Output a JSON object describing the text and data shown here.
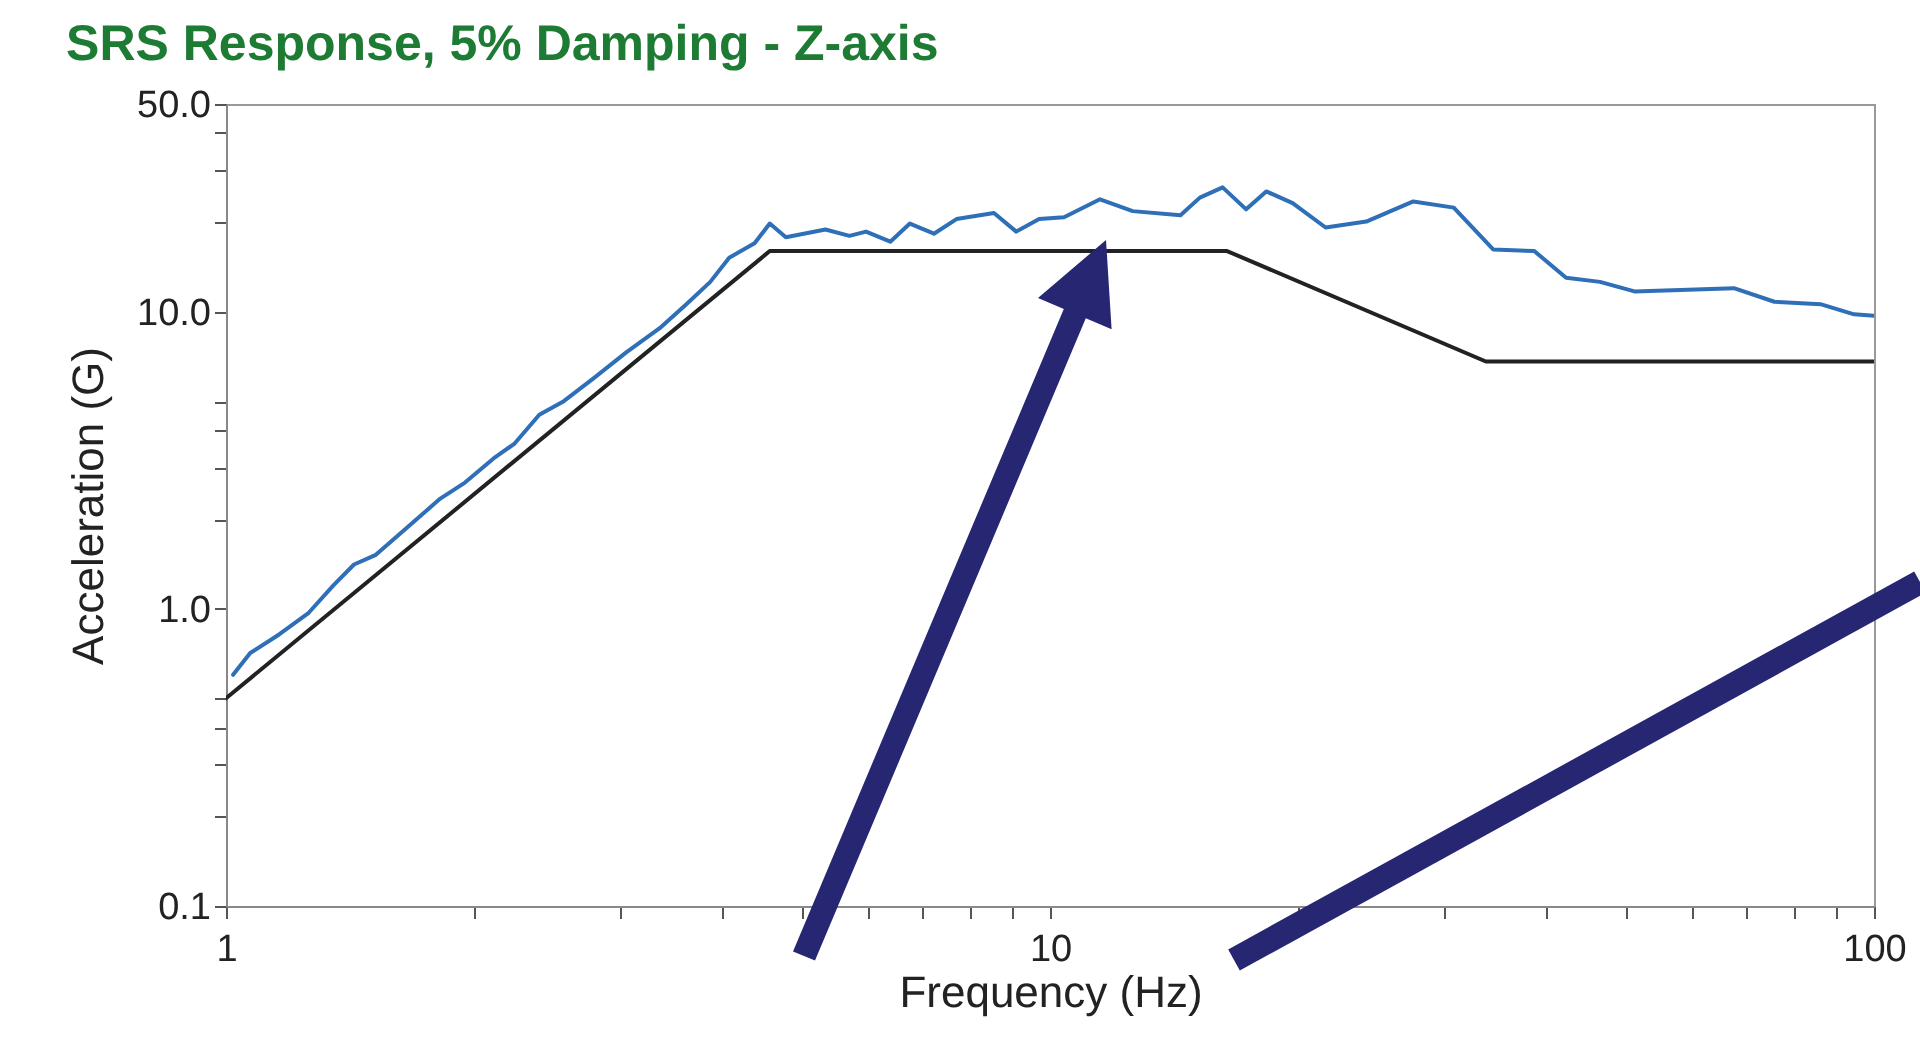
{
  "chart_data": {
    "type": "line",
    "title": "SRS Response, 5% Damping - Z-axis",
    "xlabel": "Frequency (Hz)",
    "ylabel": "Acceleration (G)",
    "log": "xy",
    "grid": false,
    "marker": "none",
    "line_style": "solid",
    "xlim": [
      1,
      100
    ],
    "xticks": [
      1,
      {
        "value": 2,
        "label": null
      },
      {
        "value": 3,
        "label": null
      },
      {
        "value": 4,
        "label": null
      },
      {
        "value": 5,
        "label": null
      },
      {
        "value": 6,
        "label": null
      },
      {
        "value": 7,
        "label": null
      },
      {
        "value": 8,
        "label": null
      },
      {
        "value": 9,
        "label": null
      },
      10,
      {
        "value": 20,
        "label": null
      },
      {
        "value": 30,
        "label": null
      },
      {
        "value": 40,
        "label": null
      },
      {
        "value": 50,
        "label": null
      },
      {
        "value": 60,
        "label": null
      },
      {
        "value": 70,
        "label": null
      },
      {
        "value": 80,
        "label": null
      },
      {
        "value": 90,
        "label": null
      },
      100
    ],
    "ylim": [
      0.1,
      50
    ],
    "yticks": [
      {
        "value": 0.1,
        "label": "0.1"
      },
      {
        "value": 0.2,
        "label": null
      },
      {
        "value": 0.3,
        "label": null
      },
      {
        "value": 0.4,
        "label": null
      },
      {
        "value": 0.5,
        "label": null
      },
      {
        "value": 1,
        "label": "1.0"
      },
      {
        "value": 2,
        "label": null
      },
      {
        "value": 3,
        "label": null
      },
      {
        "value": 4,
        "label": null
      },
      {
        "value": 5,
        "label": null
      },
      {
        "value": 10,
        "label": "10.0"
      },
      {
        "value": 20,
        "label": null
      },
      {
        "value": 30,
        "label": null
      },
      {
        "value": 40,
        "label": null
      },
      {
        "value": 50,
        "label": "50.0"
      }
    ],
    "series": [
      {
        "color": "#2f6fb8",
        "x": [
          1.02,
          1.07,
          1.16,
          1.26,
          1.35,
          1.43,
          1.52,
          1.63,
          1.82,
          1.95,
          2.11,
          2.24,
          2.4,
          2.57,
          2.8,
          3.06,
          3.36,
          3.62,
          3.87,
          4.08,
          4.38,
          4.57,
          4.78,
          5.34,
          5.71,
          5.98,
          6.4,
          6.76,
          7.23,
          7.7,
          8.55,
          9.1,
          9.7,
          10.4,
          11.5,
          12.6,
          14.4,
          15.2,
          16.2,
          17.3,
          18.3,
          19.7,
          21.6,
          24.2,
          27.6,
          30.9,
          34.5,
          38.7,
          42.3,
          46.5,
          51.2,
          67.6,
          75.7,
          86.1,
          94.6,
          100
        ],
        "values": [
          0.6,
          0.71,
          0.82,
          0.97,
          1.2,
          1.41,
          1.52,
          1.8,
          2.35,
          2.66,
          3.2,
          3.6,
          4.5,
          5,
          6,
          7.3,
          8.8,
          10.6,
          12.6,
          15.2,
          17,
          19.8,
          17.8,
          18.9,
          18,
          18.6,
          17.2,
          19.8,
          18.3,
          20.5,
          21.5,
          18.6,
          20.5,
          20.8,
          23.9,
          21.8,
          21.1,
          24.2,
          26.2,
          22.1,
          25.4,
          23.2,
          19.2,
          20.1,
          23.5,
          22.4,
          16.2,
          16,
          13,
          12.6,
          11.7,
          12,
          10.8,
          10.6,
          9.8,
          9.7
        ]
      },
      {
        "color": "#222222",
        "x": [
          1,
          4.57,
          16.4,
          33.8,
          100
        ],
        "values": [
          0.5,
          16,
          16,
          6.8,
          6.8
        ]
      }
    ]
  }
}
